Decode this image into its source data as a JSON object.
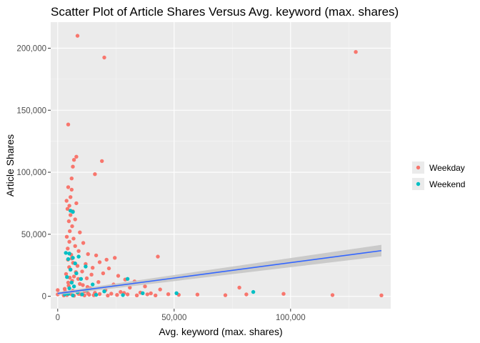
{
  "chart_data": {
    "type": "scatter",
    "title": "Scatter Plot of Article Shares Versus Avg. keyword (max. shares)",
    "xlabel": "Avg. keyword (max. shares)",
    "ylabel": "Article Shares",
    "xlim": [
      -3000,
      143000
    ],
    "ylim": [
      -10000,
      221000
    ],
    "x_ticks": [
      0,
      50000,
      100000
    ],
    "x_tick_labels": [
      "0",
      "50,000",
      "100,000"
    ],
    "y_ticks": [
      0,
      50000,
      100000,
      150000,
      200000
    ],
    "y_tick_labels": [
      "0",
      "50,000",
      "100,000",
      "150,000",
      "200,000"
    ],
    "grid": true,
    "legend_position": "right",
    "series": [
      {
        "name": "Weekday",
        "color": "#f8766d",
        "points": [
          [
            8500,
            210000
          ],
          [
            20000,
            192500
          ],
          [
            128000,
            197000
          ],
          [
            4500,
            138500
          ],
          [
            8000,
            112500
          ],
          [
            7000,
            110000
          ],
          [
            19000,
            109000
          ],
          [
            16000,
            98500
          ],
          [
            6500,
            104500
          ],
          [
            6000,
            95000
          ],
          [
            4500,
            88000
          ],
          [
            6000,
            86000
          ],
          [
            5500,
            80000
          ],
          [
            3800,
            77000
          ],
          [
            8000,
            75000
          ],
          [
            5000,
            73000
          ],
          [
            4200,
            70500
          ],
          [
            6500,
            68500
          ],
          [
            5500,
            65500
          ],
          [
            7500,
            62000
          ],
          [
            4800,
            60500
          ],
          [
            6200,
            56500
          ],
          [
            5200,
            52500
          ],
          [
            9500,
            51500
          ],
          [
            3900,
            48000
          ],
          [
            6800,
            46500
          ],
          [
            5000,
            44000
          ],
          [
            11000,
            43000
          ],
          [
            7500,
            40500
          ],
          [
            4300,
            38500
          ],
          [
            9000,
            36500
          ],
          [
            13000,
            34000
          ],
          [
            16500,
            33000
          ],
          [
            43000,
            32000
          ],
          [
            21000,
            29500
          ],
          [
            24500,
            31000
          ],
          [
            6000,
            30500
          ],
          [
            18000,
            27500
          ],
          [
            12000,
            26000
          ],
          [
            8500,
            24500
          ],
          [
            15000,
            23000
          ],
          [
            22000,
            22500
          ],
          [
            5500,
            21500
          ],
          [
            10500,
            20000
          ],
          [
            19500,
            18500
          ],
          [
            14500,
            17500
          ],
          [
            26000,
            16500
          ],
          [
            7000,
            16000
          ],
          [
            12500,
            14500
          ],
          [
            29000,
            13500
          ],
          [
            33000,
            12000
          ],
          [
            17500,
            11500
          ],
          [
            4500,
            11000
          ],
          [
            9500,
            10000
          ],
          [
            24000,
            9500
          ],
          [
            37500,
            8000
          ],
          [
            31000,
            7000
          ],
          [
            14000,
            6500
          ],
          [
            44000,
            5500
          ],
          [
            20500,
            5000
          ],
          [
            6500,
            4500
          ],
          [
            11500,
            4000
          ],
          [
            27000,
            3500
          ],
          [
            35500,
            3000
          ],
          [
            16000,
            2800
          ],
          [
            40000,
            2400
          ],
          [
            23000,
            2100
          ],
          [
            9000,
            1900
          ],
          [
            47500,
            1700
          ],
          [
            30000,
            1500
          ],
          [
            13500,
            1300
          ],
          [
            52000,
            1200
          ],
          [
            60000,
            1400
          ],
          [
            72000,
            900
          ],
          [
            81000,
            1500
          ],
          [
            78000,
            7000
          ],
          [
            97000,
            2000
          ],
          [
            118000,
            1000
          ],
          [
            139000,
            800
          ],
          [
            0,
            5000
          ],
          [
            0,
            1500
          ],
          [
            2500,
            2500
          ],
          [
            4000,
            1000
          ],
          [
            5500,
            2000
          ],
          [
            7000,
            500
          ],
          [
            8500,
            3000
          ],
          [
            10000,
            1500
          ],
          [
            11500,
            700
          ],
          [
            13000,
            2300
          ],
          [
            15500,
            900
          ],
          [
            18000,
            1800
          ],
          [
            21500,
            600
          ],
          [
            25500,
            1100
          ],
          [
            28500,
            2700
          ],
          [
            34000,
            800
          ],
          [
            38500,
            1600
          ],
          [
            42000,
            700
          ],
          [
            3000,
            6000
          ],
          [
            4700,
            8500
          ],
          [
            6200,
            12500
          ],
          [
            5200,
            15000
          ],
          [
            3600,
            18000
          ],
          [
            7800,
            19500
          ],
          [
            4900,
            23500
          ],
          [
            6600,
            27000
          ],
          [
            5800,
            33500
          ],
          [
            4400,
            29500
          ],
          [
            8800,
            14000
          ],
          [
            10800,
            9000
          ],
          [
            12800,
            7500
          ],
          [
            3200,
            3800
          ],
          [
            2600,
            700
          ]
        ]
      },
      {
        "name": "Weekend",
        "color": "#00bfc4",
        "points": [
          [
            5500,
            69000
          ],
          [
            6500,
            68000
          ],
          [
            3500,
            35000
          ],
          [
            5000,
            34500
          ],
          [
            9000,
            32000
          ],
          [
            6500,
            31000
          ],
          [
            4500,
            30000
          ],
          [
            7500,
            26500
          ],
          [
            12000,
            24000
          ],
          [
            5500,
            21500
          ],
          [
            8000,
            18500
          ],
          [
            4000,
            15500
          ],
          [
            10000,
            14000
          ],
          [
            30000,
            14000
          ],
          [
            6000,
            11000
          ],
          [
            15000,
            9500
          ],
          [
            7000,
            8000
          ],
          [
            5000,
            6500
          ],
          [
            12500,
            5000
          ],
          [
            20000,
            4000
          ],
          [
            8500,
            3200
          ],
          [
            36500,
            2500
          ],
          [
            51000,
            2500
          ],
          [
            84000,
            3500
          ],
          [
            4500,
            2000
          ],
          [
            10500,
            1500
          ],
          [
            16500,
            1200
          ],
          [
            28000,
            1000
          ],
          [
            6500,
            700
          ],
          [
            3000,
            1500
          ]
        ]
      }
    ],
    "fit": {
      "type": "linear",
      "color": "#3366ff",
      "band_color": "#c4c4c4",
      "x": [
        0,
        139000
      ],
      "y": [
        2300,
        36800
      ],
      "band_lower": [
        1000,
        32200
      ],
      "band_upper": [
        3500,
        41500
      ]
    }
  }
}
